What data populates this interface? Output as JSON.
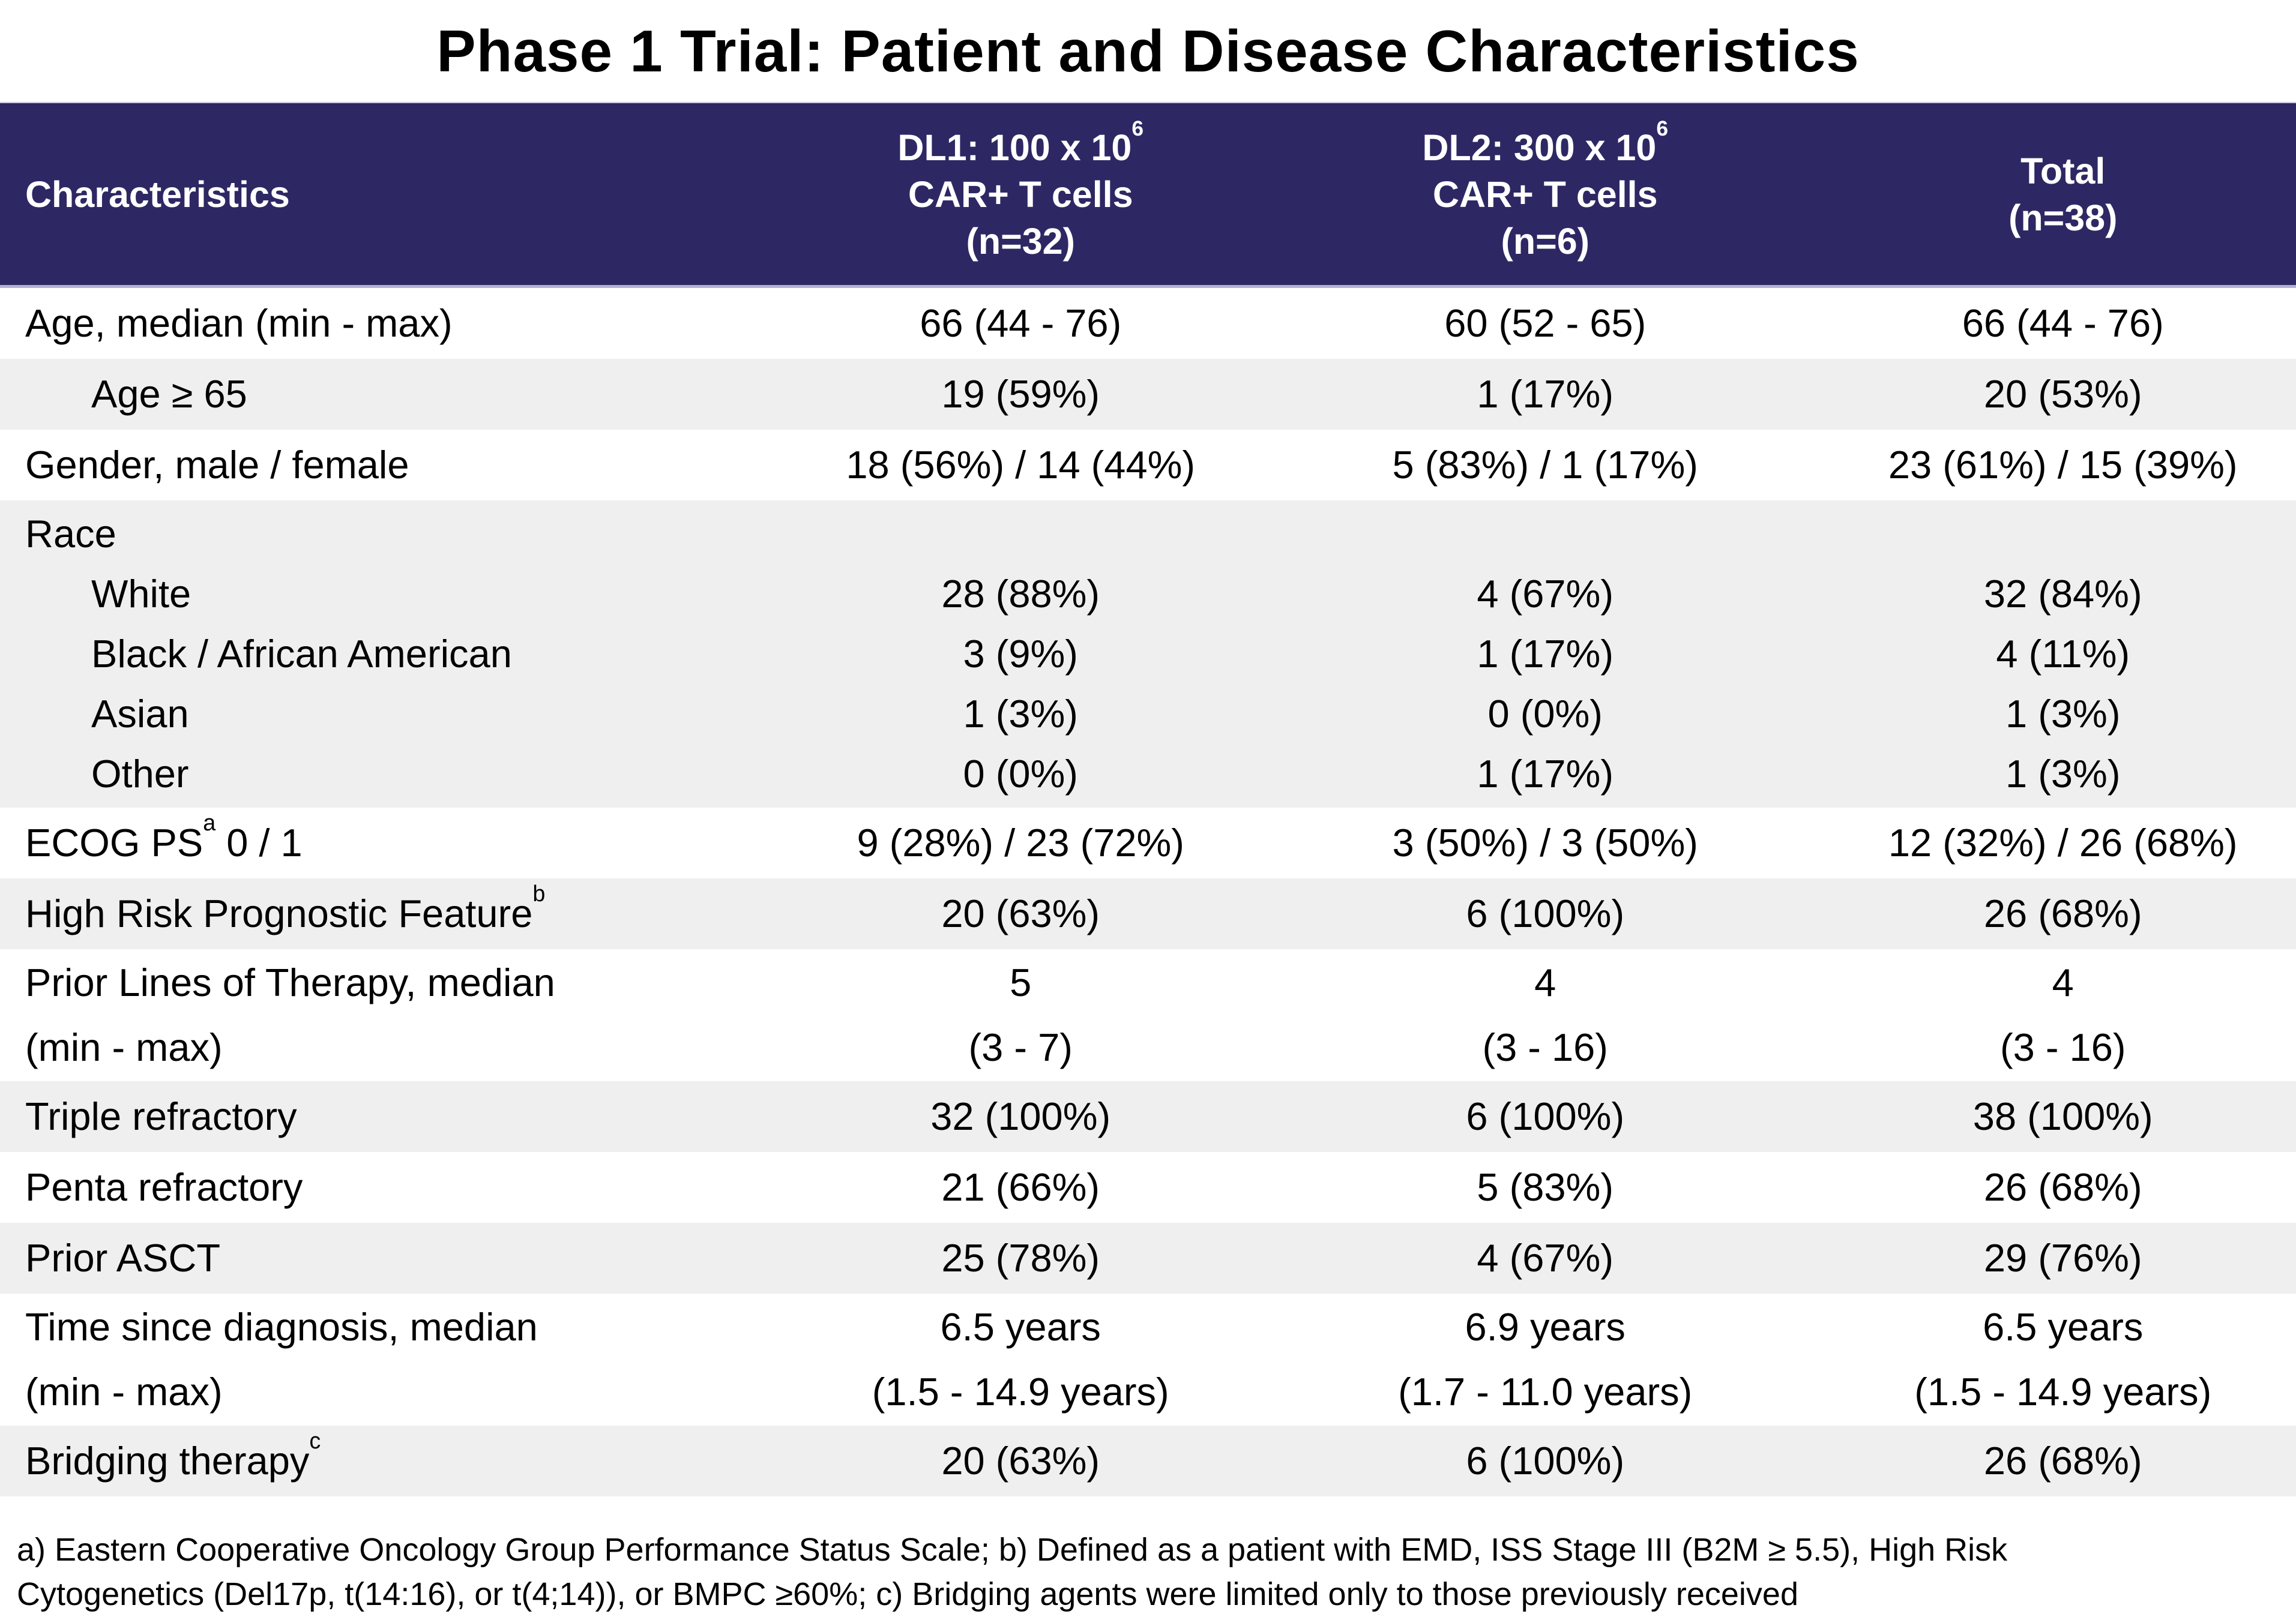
{
  "title": "Phase 1 Trial: Patient and Disease Characteristics",
  "colors": {
    "header_bg": "#2d2864",
    "header_text": "#ffffff",
    "alt_row_bg": "#efefef",
    "separator": "#b2b1d4",
    "body_text": "#000000"
  },
  "table": {
    "columns": [
      {
        "key": "characteristics",
        "lines": [
          [
            {
              "t": "Characteristics"
            }
          ]
        ]
      },
      {
        "key": "dl1",
        "lines": [
          [
            {
              "t": "DL1: 100 x 10"
            },
            {
              "sup": "6"
            }
          ],
          [
            {
              "t": "CAR+ T cells"
            }
          ],
          [
            {
              "t": "(n=32)"
            }
          ]
        ]
      },
      {
        "key": "dl2",
        "lines": [
          [
            {
              "t": "DL2: 300 x 10"
            },
            {
              "sup": "6"
            }
          ],
          [
            {
              "t": "CAR+ T cells"
            }
          ],
          [
            {
              "t": "(n=6)"
            }
          ]
        ]
      },
      {
        "key": "total",
        "lines": [
          [
            {
              "t": "Total"
            }
          ],
          [
            {
              "t": "(n=38)"
            }
          ]
        ]
      }
    ],
    "rows": [
      {
        "shade": "white",
        "label": [
          [
            {
              "t": "Age, median (min - max)"
            }
          ]
        ],
        "values": [
          [
            "66 (44 - 76)"
          ],
          [
            "60 (52 - 65)"
          ],
          [
            "66 (44 - 76)"
          ]
        ]
      },
      {
        "shade": "gray",
        "indent": true,
        "label": [
          [
            {
              "t": "Age ≥ 65"
            }
          ]
        ],
        "values": [
          [
            "19 (59%)"
          ],
          [
            "1 (17%)"
          ],
          [
            "20 (53%)"
          ]
        ]
      },
      {
        "shade": "white",
        "label": [
          [
            {
              "t": "Gender, male / female"
            }
          ]
        ],
        "values": [
          [
            "18 (56%) / 14 (44%)"
          ],
          [
            "5 (83%) / 1 (17%)"
          ],
          [
            "23 (61%) / 15 (39%)"
          ]
        ]
      },
      {
        "type": "group",
        "shade": "gray",
        "title": "Race",
        "items": [
          {
            "label": "White",
            "values": [
              "28 (88%)",
              "4 (67%)",
              "32 (84%)"
            ]
          },
          {
            "label": "Black / African American",
            "values": [
              "3 (9%)",
              "1 (17%)",
              "4 (11%)"
            ]
          },
          {
            "label": "Asian",
            "values": [
              "1 (3%)",
              "0 (0%)",
              "1 (3%)"
            ]
          },
          {
            "label": "Other",
            "values": [
              "0 (0%)",
              "1 (17%)",
              "1 (3%)"
            ]
          }
        ]
      },
      {
        "shade": "white",
        "label": [
          [
            {
              "t": "ECOG PS"
            },
            {
              "sup": "a"
            },
            {
              "t": " 0 / 1"
            }
          ]
        ],
        "values": [
          [
            "9 (28%) / 23 (72%)"
          ],
          [
            "3 (50%) / 3 (50%)"
          ],
          [
            "12 (32%) / 26 (68%)"
          ]
        ]
      },
      {
        "shade": "gray",
        "label": [
          [
            {
              "t": "High Risk Prognostic Feature"
            },
            {
              "sup": "b"
            }
          ]
        ],
        "values": [
          [
            "20 (63%)"
          ],
          [
            "6 (100%)"
          ],
          [
            "26 (68%)"
          ]
        ]
      },
      {
        "shade": "white",
        "tall": true,
        "label": [
          [
            {
              "t": "Prior Lines of Therapy, median"
            }
          ],
          [
            {
              "t": "(min - max)"
            }
          ]
        ],
        "values": [
          [
            "5",
            "(3 - 7)"
          ],
          [
            "4",
            "(3 - 16)"
          ],
          [
            "4",
            "(3 - 16)"
          ]
        ]
      },
      {
        "shade": "gray",
        "label": [
          [
            {
              "t": "Triple refractory"
            }
          ]
        ],
        "values": [
          [
            "32 (100%)"
          ],
          [
            "6 (100%)"
          ],
          [
            "38 (100%)"
          ]
        ]
      },
      {
        "shade": "white",
        "label": [
          [
            {
              "t": "Penta refractory"
            }
          ]
        ],
        "values": [
          [
            "21 (66%)"
          ],
          [
            "5 (83%)"
          ],
          [
            "26 (68%)"
          ]
        ]
      },
      {
        "shade": "gray",
        "label": [
          [
            {
              "t": "Prior ASCT"
            }
          ]
        ],
        "values": [
          [
            "25 (78%)"
          ],
          [
            "4 (67%)"
          ],
          [
            "29 (76%)"
          ]
        ]
      },
      {
        "shade": "white",
        "tall": true,
        "label": [
          [
            {
              "t": "Time since diagnosis, median"
            }
          ],
          [
            {
              "t": "(min - max)"
            }
          ]
        ],
        "values": [
          [
            "6.5 years",
            "(1.5 - 14.9 years)"
          ],
          [
            "6.9 years",
            "(1.7 - 11.0 years)"
          ],
          [
            "6.5 years",
            "(1.5 - 14.9 years)"
          ]
        ]
      },
      {
        "shade": "gray",
        "label": [
          [
            {
              "t": "Bridging therapy"
            },
            {
              "sup": "c"
            }
          ]
        ],
        "values": [
          [
            "20 (63%)"
          ],
          [
            "6 (100%)"
          ],
          [
            "26 (68%)"
          ]
        ]
      }
    ]
  },
  "footnote_lines": [
    "a) Eastern Cooperative Oncology Group Performance Status Scale; b) Defined as a patient with EMD, ISS Stage III (B2M ≥ 5.5), High Risk",
    "Cytogenetics (Del17p, t(14:16), or t(4;14)), or BMPC ≥60%; c) Bridging agents were limited only to those previously received"
  ]
}
